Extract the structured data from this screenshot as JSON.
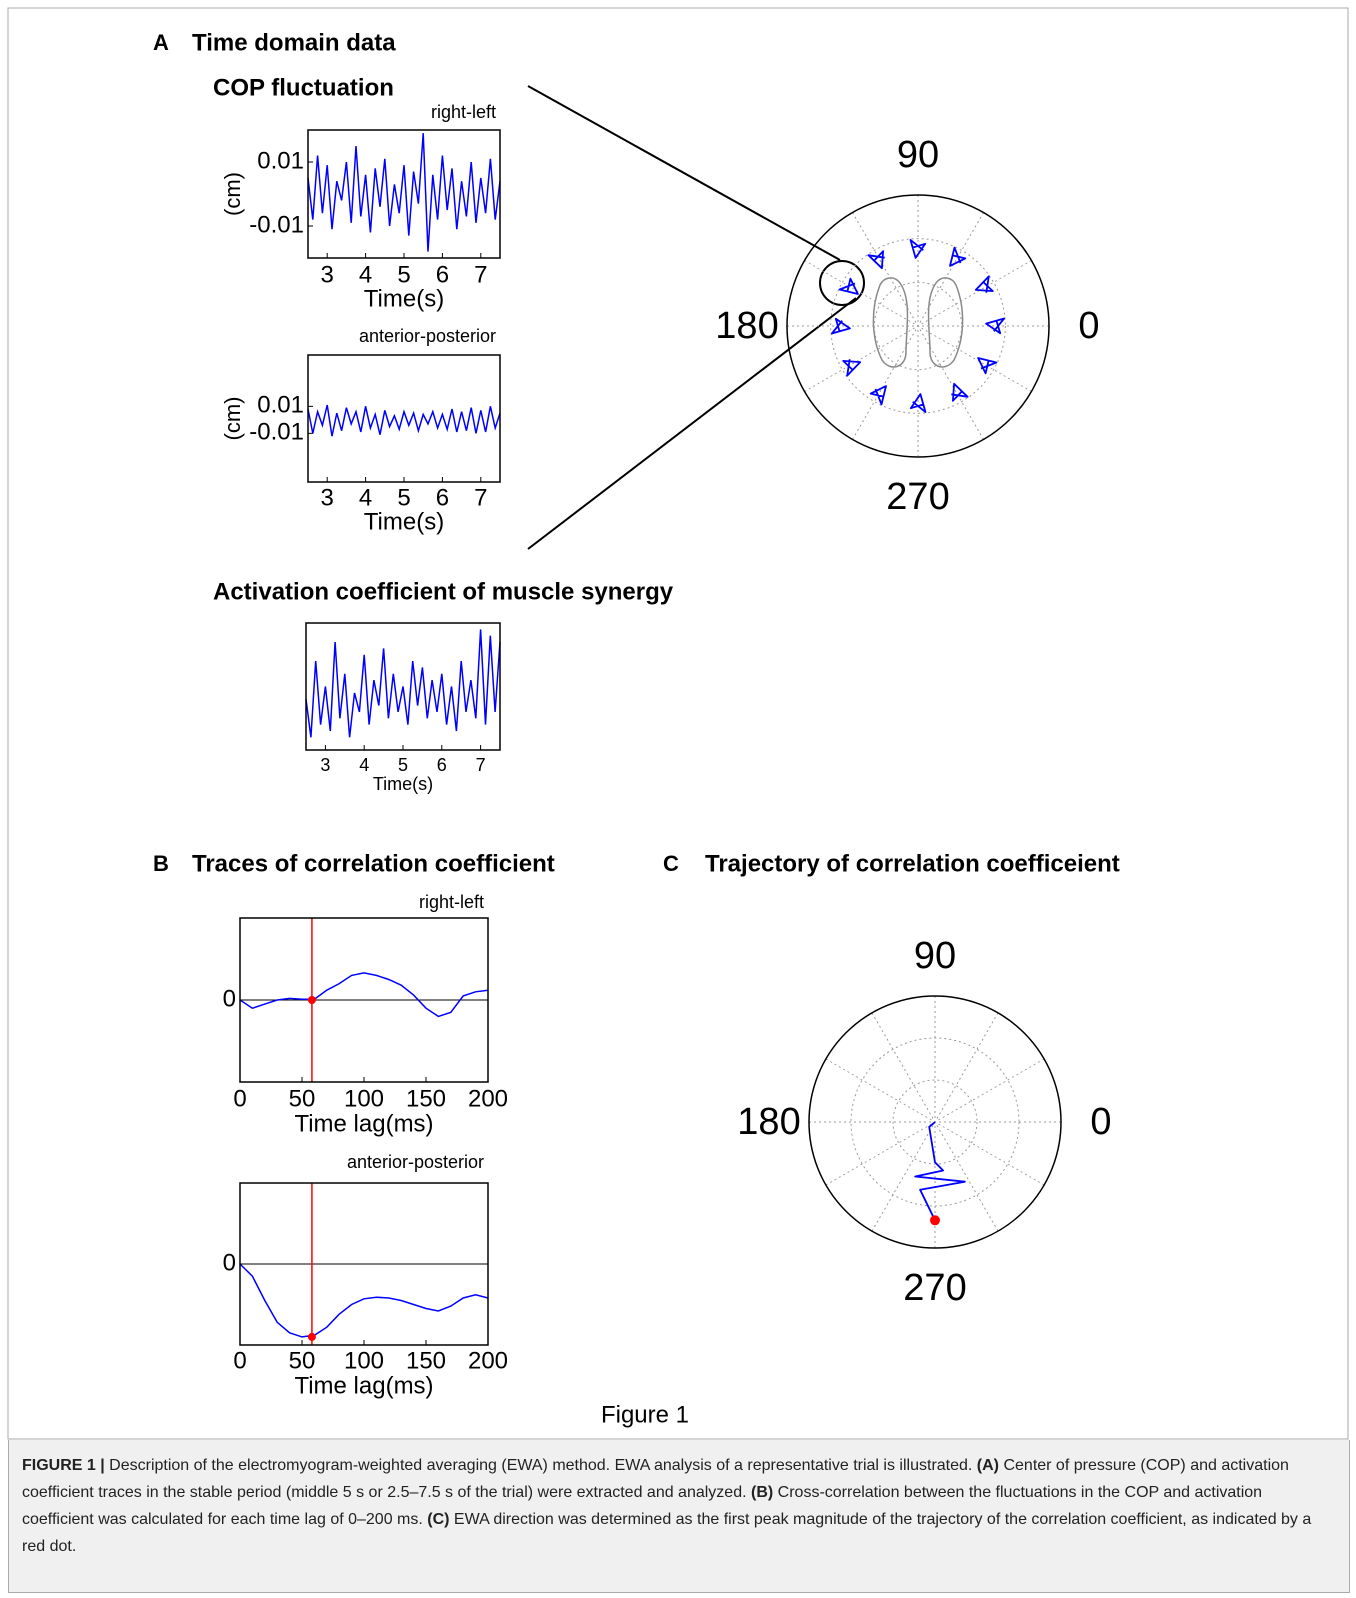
{
  "panels": {
    "a_letter": "A",
    "a_title": "Time domain data",
    "cop_title": "COP fluctuation",
    "act_title": "Activation coefficient of muscle synergy",
    "b_letter": "B",
    "b_title": "Traces of correlation coefficient",
    "c_letter": "C",
    "c_title": "Trajectory of correlation coefficeient"
  },
  "figure_label": "Figure 1",
  "caption": {
    "label": "FIGURE 1 |",
    "text1": " Description of the electromyogram-weighted averaging (EWA) method. EWA analysis of a representative trial is illustrated. ",
    "a": "(A)",
    "text2": " Center of pressure (COP) and activation coefficient traces in the stable period (middle 5 s or 2.5–7.5 s of the trial) were extracted and analyzed. ",
    "b": "(B)",
    "text3": " Cross-correlation between the fluctuations in the COP and activation coefficient was calculated for each time lag of 0–200 ms. ",
    "c": "(C)",
    "text4": " EWA direction was determined as the first peak magnitude of the trajectory of the correlation coefficient, as indicated by a red dot."
  },
  "chart_data": [
    {
      "type": "line",
      "title": "right-left",
      "ylabel": "(cm)",
      "xlabel": "Time(s)",
      "xlim": [
        2.5,
        7.5
      ],
      "xticks": [
        3,
        4,
        5,
        6,
        7
      ],
      "ylim": [
        -0.02,
        0.02
      ],
      "yticks": [
        0.01,
        -0.01
      ],
      "color": "#0000ff",
      "x": [
        2.5,
        2.625,
        2.75,
        2.875,
        3,
        3.125,
        3.25,
        3.375,
        3.5,
        3.625,
        3.75,
        3.875,
        4,
        4.125,
        4.25,
        4.375,
        4.5,
        4.625,
        4.75,
        4.875,
        5,
        5.125,
        5.25,
        5.375,
        5.5,
        5.625,
        5.75,
        5.875,
        6,
        6.125,
        6.25,
        6.375,
        6.5,
        6.625,
        6.75,
        6.875,
        7,
        7.125,
        7.25,
        7.375,
        7.5
      ],
      "values": [
        0.005,
        -0.008,
        0.012,
        -0.006,
        0.009,
        -0.011,
        0.004,
        -0.002,
        0.01,
        -0.009,
        0.015,
        -0.007,
        0.006,
        -0.012,
        0.008,
        -0.004,
        0.011,
        -0.01,
        0.003,
        -0.006,
        0.009,
        -0.013,
        0.007,
        -0.003,
        0.019,
        -0.018,
        0.006,
        -0.008,
        0.012,
        -0.005,
        0.008,
        -0.011,
        0.004,
        -0.007,
        0.01,
        -0.009,
        0.005,
        -0.006,
        0.011,
        -0.008,
        0.004
      ]
    },
    {
      "type": "line",
      "title": "anterior-posterior",
      "ylabel": "(cm)",
      "xlabel": "Time(s)",
      "xlim": [
        2.5,
        7.5
      ],
      "xticks": [
        3,
        4,
        5,
        6,
        7
      ],
      "ylim": [
        -0.046,
        0.048
      ],
      "yticks": [
        0.01,
        -0.01
      ],
      "color": "#0000ff",
      "x": [
        2.5,
        2.625,
        2.75,
        2.875,
        3,
        3.125,
        3.25,
        3.375,
        3.5,
        3.625,
        3.75,
        3.875,
        4,
        4.125,
        4.25,
        4.375,
        4.5,
        4.625,
        4.75,
        4.875,
        5,
        5.125,
        5.25,
        5.375,
        5.5,
        5.625,
        5.75,
        5.875,
        6,
        6.125,
        6.25,
        6.375,
        6.5,
        6.625,
        6.75,
        6.875,
        7,
        7.125,
        7.25,
        7.375,
        7.5
      ],
      "values": [
        0.008,
        -0.01,
        0.006,
        -0.004,
        0.011,
        -0.012,
        0.005,
        -0.008,
        0.009,
        -0.003,
        0.006,
        -0.009,
        0.01,
        -0.006,
        0.004,
        -0.011,
        0.007,
        -0.005,
        0.003,
        -0.007,
        0.006,
        -0.004,
        0.005,
        -0.008,
        0.004,
        -0.003,
        0.006,
        -0.006,
        0.004,
        -0.007,
        0.008,
        -0.009,
        0.006,
        -0.008,
        0.009,
        -0.01,
        0.007,
        -0.009,
        0.01,
        -0.006,
        0.005
      ]
    },
    {
      "type": "line",
      "xlabel": "Time(s)",
      "xlim": [
        2.5,
        7.5
      ],
      "xticks": [
        3,
        4,
        5,
        6,
        7
      ],
      "ylim": [
        0,
        1
      ],
      "yticks": [],
      "color": "#0000ff",
      "x": [
        2.5,
        2.625,
        2.75,
        2.875,
        3,
        3.125,
        3.25,
        3.375,
        3.5,
        3.625,
        3.75,
        3.875,
        4,
        4.125,
        4.25,
        4.375,
        4.5,
        4.625,
        4.75,
        4.875,
        5,
        5.125,
        5.25,
        5.375,
        5.5,
        5.625,
        5.75,
        5.875,
        6,
        6.125,
        6.25,
        6.375,
        6.5,
        6.625,
        6.75,
        6.875,
        7,
        7.125,
        7.25,
        7.375,
        7.5
      ],
      "values": [
        0.4,
        0.1,
        0.7,
        0.2,
        0.5,
        0.15,
        0.85,
        0.25,
        0.6,
        0.1,
        0.45,
        0.3,
        0.75,
        0.2,
        0.55,
        0.35,
        0.8,
        0.25,
        0.6,
        0.3,
        0.5,
        0.2,
        0.7,
        0.35,
        0.65,
        0.25,
        0.55,
        0.3,
        0.6,
        0.2,
        0.5,
        0.15,
        0.7,
        0.3,
        0.55,
        0.25,
        0.95,
        0.2,
        0.9,
        0.3,
        0.85
      ]
    },
    {
      "type": "line",
      "title": "right-left",
      "xlabel": "Time lag(ms)",
      "xlim": [
        0,
        200
      ],
      "xticks": [
        0,
        50,
        100,
        150,
        200
      ],
      "ylim": [
        -1,
        1
      ],
      "yticks": [
        0
      ],
      "reference_line": 0,
      "color": "#0000ff",
      "x": [
        0,
        10,
        20,
        30,
        40,
        50,
        60,
        70,
        80,
        90,
        100,
        110,
        120,
        130,
        140,
        150,
        160,
        170,
        180,
        190,
        200
      ],
      "values": [
        0,
        -0.1,
        -0.05,
        0,
        0.02,
        0.01,
        0.01,
        0.12,
        0.2,
        0.3,
        0.33,
        0.3,
        0.25,
        0.18,
        0.06,
        -0.1,
        -0.2,
        -0.15,
        0.05,
        0.1,
        0.12
      ],
      "marker": {
        "x": 58,
        "y": 0,
        "color": "#ff0000"
      }
    },
    {
      "type": "line",
      "title": "anterior-posterior",
      "xlabel": "Time lag(ms)",
      "xlim": [
        0,
        200
      ],
      "xticks": [
        0,
        50,
        100,
        150,
        200
      ],
      "ylim": [
        -1,
        1
      ],
      "yticks": [
        0
      ],
      "reference_line": 0,
      "color": "#0000ff",
      "x": [
        0,
        10,
        20,
        30,
        40,
        50,
        60,
        70,
        80,
        90,
        100,
        110,
        120,
        130,
        140,
        150,
        160,
        170,
        180,
        190,
        200
      ],
      "values": [
        0,
        -0.15,
        -0.45,
        -0.72,
        -0.85,
        -0.9,
        -0.88,
        -0.78,
        -0.62,
        -0.5,
        -0.43,
        -0.41,
        -0.42,
        -0.45,
        -0.5,
        -0.55,
        -0.58,
        -0.52,
        -0.42,
        -0.38,
        -0.42
      ],
      "marker": {
        "x": 58,
        "y": -0.9,
        "color": "#ff0000"
      }
    },
    {
      "type": "polar",
      "rlim": [
        0,
        1
      ],
      "thetaticks": [
        0,
        90,
        180,
        270
      ],
      "color": "#0000ff",
      "theta": [
        356,
        5,
        2,
        355,
        4,
        null,
        26,
        35,
        32,
        25,
        34,
        null,
        56,
        65,
        62,
        55,
        64,
        null,
        86,
        95,
        92,
        85,
        94,
        null,
        116,
        125,
        122,
        115,
        124,
        null,
        146,
        155,
        152,
        145,
        154,
        null,
        176,
        185,
        182,
        175,
        184,
        null,
        206,
        215,
        212,
        205,
        214,
        null,
        236,
        245,
        242,
        235,
        244,
        null,
        266,
        275,
        272,
        265,
        274,
        null,
        296,
        305,
        302,
        295,
        304,
        null,
        326,
        335,
        332,
        325,
        334
      ],
      "values": [
        0.58,
        0.66,
        0.52,
        0.63,
        0.6,
        null,
        0.58,
        0.66,
        0.52,
        0.63,
        0.6,
        null,
        0.58,
        0.66,
        0.52,
        0.63,
        0.6,
        null,
        0.58,
        0.66,
        0.52,
        0.63,
        0.6,
        null,
        0.58,
        0.66,
        0.52,
        0.63,
        0.6,
        null,
        0.58,
        0.66,
        0.52,
        0.63,
        0.6,
        null,
        0.58,
        0.66,
        0.52,
        0.63,
        0.6,
        null,
        0.58,
        0.66,
        0.52,
        0.63,
        0.6,
        null,
        0.58,
        0.66,
        0.52,
        0.63,
        0.6,
        null,
        0.58,
        0.66,
        0.52,
        0.63,
        0.6,
        null,
        0.58,
        0.66,
        0.52,
        0.63,
        0.6,
        null,
        0.58,
        0.66,
        0.52,
        0.63,
        0.6
      ]
    },
    {
      "type": "polar",
      "rlim": [
        0,
        1
      ],
      "thetaticks": [
        0,
        90,
        180,
        270
      ],
      "color": "#0000ff",
      "theta": [
        0,
        220,
        270,
        279.5,
        250,
        296.6,
        257.6,
        270
      ],
      "values": [
        0,
        0.06,
        0.32,
        0.39,
        0.46,
        0.53,
        0.55,
        0.78
      ],
      "peak": {
        "theta": 270,
        "r": 0.78,
        "color": "#ff0000"
      }
    }
  ]
}
